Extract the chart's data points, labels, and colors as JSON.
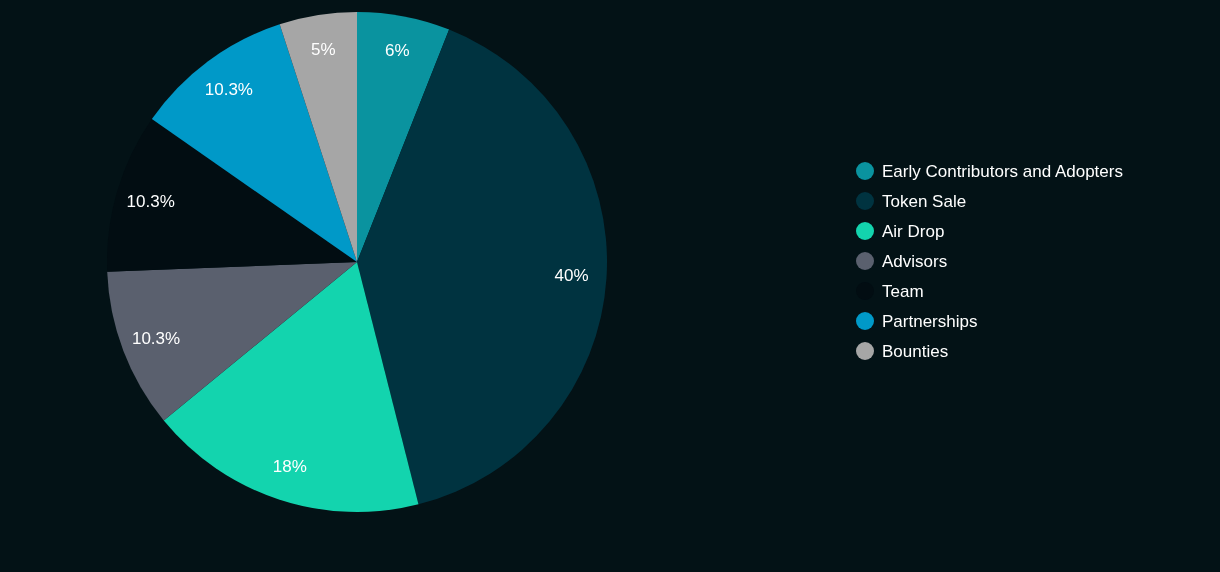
{
  "chart_data": {
    "type": "pie",
    "categories": [
      "Early Contributors and Adopters",
      "Token Sale",
      "Air Drop",
      "Advisors",
      "Team",
      "Partnerships",
      "Bounties"
    ],
    "values": [
      6,
      40,
      18,
      10.3,
      10.3,
      10.3,
      5
    ],
    "colors": [
      "#0a939f",
      "#003340",
      "#13d4ae",
      "#5a606e",
      "#020d12",
      "#0099c8",
      "#a6a6a6"
    ],
    "value_labels": [
      "6%",
      "40%",
      "18%",
      "10.3%",
      "10.3%",
      "10.3%",
      "5%"
    ],
    "legend": "right"
  }
}
